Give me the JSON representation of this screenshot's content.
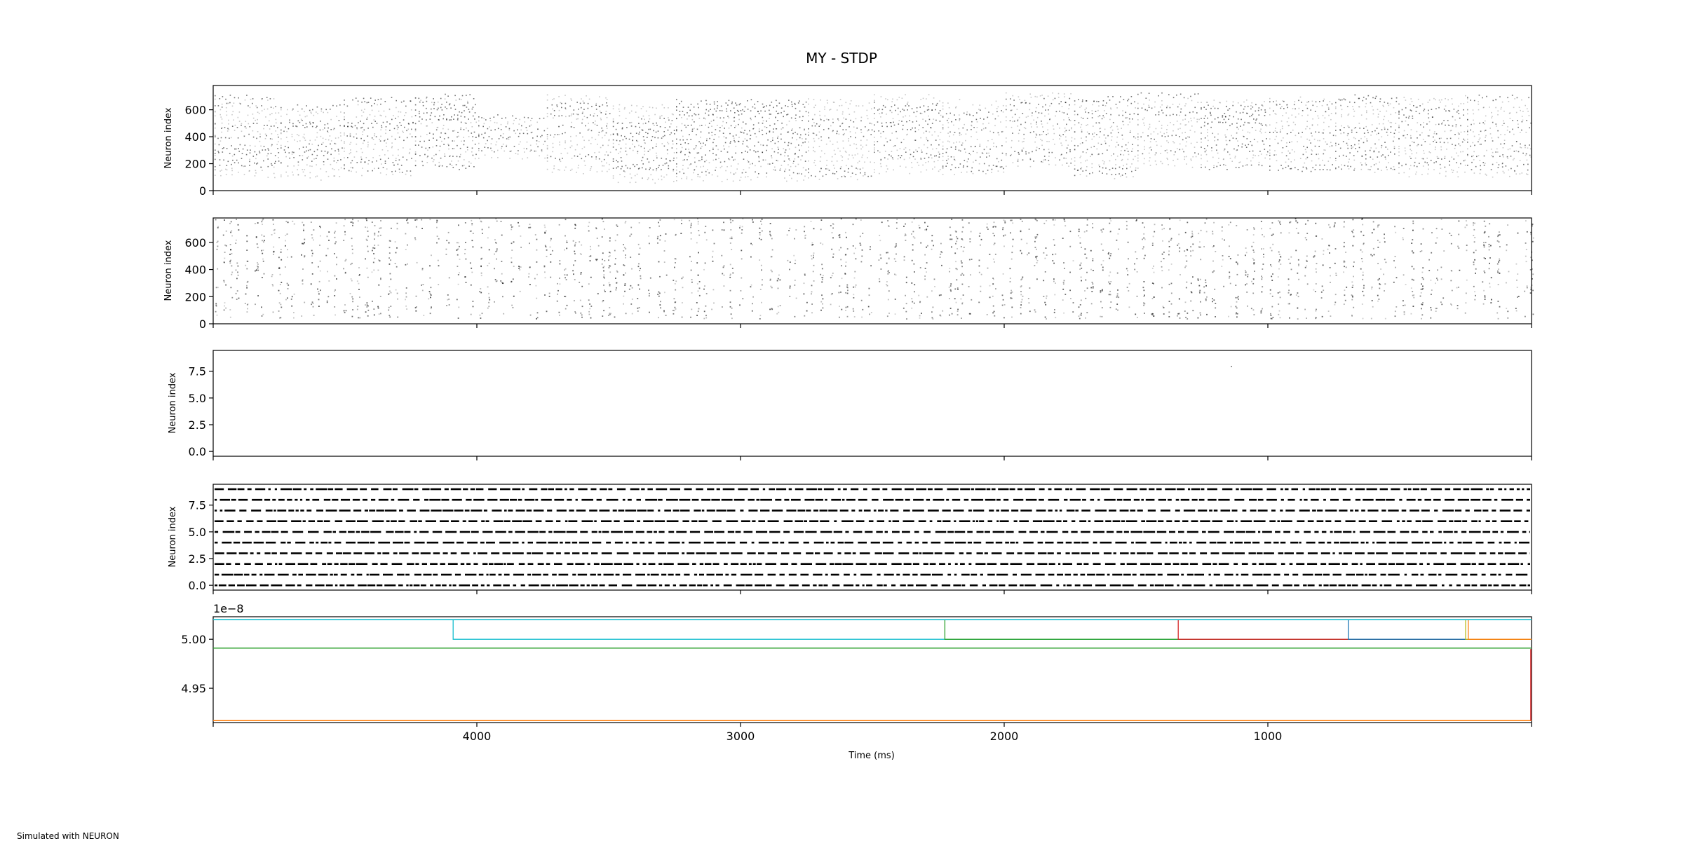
{
  "figure": {
    "title": "MY - STDP",
    "xlabel": "Time (ms)",
    "footer": "Simulated with NEURON",
    "offset_text": "1e−8",
    "x_tick_labels": [
      "4000",
      "3000",
      "2000",
      "1000"
    ]
  },
  "chart_data": [
    {
      "type": "scatter",
      "panel": 1,
      "ylabel": "Neuron index",
      "xlim": [
        5000,
        0
      ],
      "ylim": [
        0,
        780
      ],
      "yticks": [
        0,
        200,
        400,
        600
      ],
      "ytick_labels": [
        "0",
        "200",
        "400",
        "600"
      ],
      "marker_color": "#000000",
      "segments": [
        {
          "t0": 5000,
          "t1": 4750,
          "y0": 120,
          "y1": 700
        },
        {
          "t0": 4750,
          "t1": 4510,
          "y0": 100,
          "y1": 640
        },
        {
          "t0": 4510,
          "t1": 4240,
          "y0": 130,
          "y1": 680
        },
        {
          "t0": 4240,
          "t1": 4000,
          "y0": 180,
          "y1": 700
        },
        {
          "t0": 4000,
          "t1": 3740,
          "y0": 260,
          "y1": 560
        },
        {
          "t0": 3740,
          "t1": 3490,
          "y0": 150,
          "y1": 700
        },
        {
          "t0": 3490,
          "t1": 3250,
          "y0": 80,
          "y1": 650
        },
        {
          "t0": 3250,
          "t1": 2750,
          "y0": 90,
          "y1": 680
        },
        {
          "t0": 2750,
          "t1": 2500,
          "y0": 100,
          "y1": 680
        },
        {
          "t0": 2500,
          "t1": 2240,
          "y0": 150,
          "y1": 700
        },
        {
          "t0": 2240,
          "t1": 2000,
          "y0": 140,
          "y1": 670
        },
        {
          "t0": 2000,
          "t1": 1740,
          "y0": 200,
          "y1": 740
        },
        {
          "t0": 1740,
          "t1": 1500,
          "y0": 110,
          "y1": 700
        },
        {
          "t0": 1500,
          "t1": 1260,
          "y0": 190,
          "y1": 720
        },
        {
          "t0": 1260,
          "t1": 1000,
          "y0": 180,
          "y1": 680
        },
        {
          "t0": 1000,
          "t1": 750,
          "y0": 160,
          "y1": 700
        },
        {
          "t0": 750,
          "t1": 510,
          "y0": 150,
          "y1": 720
        },
        {
          "t0": 510,
          "t1": 250,
          "y0": 120,
          "y1": 700
        },
        {
          "t0": 250,
          "t1": 0,
          "y0": 120,
          "y1": 700
        }
      ]
    },
    {
      "type": "scatter",
      "panel": 2,
      "ylabel": "Neuron index",
      "xlim": [
        5000,
        0
      ],
      "ylim": [
        0,
        780
      ],
      "yticks": [
        0,
        200,
        400,
        600
      ],
      "ytick_labels": [
        "0",
        "200",
        "400",
        "600"
      ],
      "marker_color": "#000000",
      "y_range": [
        40,
        780
      ],
      "t_range": [
        0,
        5000
      ]
    },
    {
      "type": "scatter",
      "panel": 3,
      "ylabel": "Neuron index",
      "xlim": [
        5000,
        0
      ],
      "ylim": [
        -0.45,
        9.45
      ],
      "yticks": [
        0.0,
        2.5,
        5.0,
        7.5
      ],
      "ytick_labels": [
        "0.0",
        "2.5",
        "5.0",
        "7.5"
      ],
      "points": [
        {
          "x": 1140,
          "y": 8
        }
      ]
    },
    {
      "type": "scatter",
      "panel": 4,
      "ylabel": "Neuron index",
      "xlim": [
        5000,
        0
      ],
      "ylim": [
        -0.45,
        9.45
      ],
      "yticks": [
        0.0,
        2.5,
        5.0,
        7.5
      ],
      "ytick_labels": [
        "0.0",
        "2.5",
        "5.0",
        "7.5"
      ],
      "rows": [
        0,
        1,
        2,
        3,
        4,
        5,
        6,
        7,
        8,
        9
      ],
      "marker_color": "#000000"
    },
    {
      "type": "line",
      "panel": 5,
      "xlim": [
        5000,
        0
      ],
      "ylim": [
        4.915,
        5.023
      ],
      "y_scale": "1e-8",
      "yticks": [
        4.95,
        5.0
      ],
      "ytick_labels": [
        "4.95",
        "5.00"
      ],
      "series": [
        {
          "color": "#17becf",
          "base": 5.0,
          "jump_at": 4090,
          "level_after": 5.02
        },
        {
          "color": "#2ca02c",
          "base": 5.0,
          "jump_at": 2225,
          "level_after": 5.02
        },
        {
          "color": "#d62728",
          "base": 5.0,
          "jump_at": 1340,
          "level_after": 5.02
        },
        {
          "color": "#1f77b4",
          "base": 5.0,
          "jump_at": 695,
          "level_after": 5.02
        },
        {
          "color": "#bcbd22",
          "base": 5.0,
          "jump_at": 250,
          "level_after": 5.02
        },
        {
          "color": "#ff7f0e",
          "base": 5.0,
          "jump_at": 240,
          "level_after": 5.02
        },
        {
          "color": "#17becf",
          "base": 5.02,
          "flat": true
        },
        {
          "color": "#2ca02c",
          "base": 4.991,
          "flat": true
        },
        {
          "color": "#ff7f0e",
          "base": 4.917,
          "flat": true
        }
      ]
    }
  ]
}
